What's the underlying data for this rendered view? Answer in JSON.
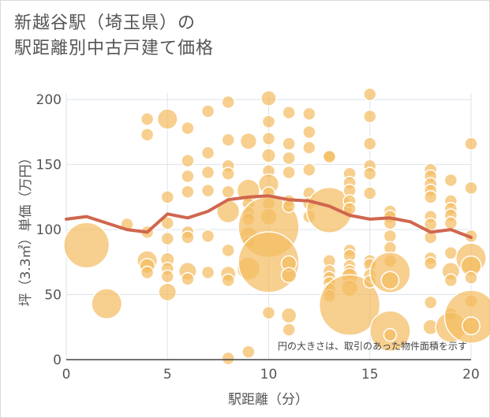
{
  "chart_data": {
    "type": "scatter",
    "title_line1": "新越谷駅（埼玉県）の",
    "title_line2": "駅距離別中古戸建て価格",
    "xlabel": "駅距離（分）",
    "ylabel": "坪（3.3㎡）単価（万円）",
    "note": "円の大きさは、取引のあった物件面積を示す",
    "xlim": [
      0,
      20
    ],
    "ylim": [
      0,
      205
    ],
    "x_ticks": [
      0,
      5,
      10,
      15,
      20
    ],
    "y_ticks": [
      0,
      50,
      100,
      150,
      200
    ],
    "colors": {
      "bubble": "#f4bc63",
      "line": "#d0664e",
      "grid": "#dde3ea",
      "axis": "#444444"
    },
    "points": [
      {
        "x": 1,
        "y": 88,
        "s": 3.6
      },
      {
        "x": 2,
        "y": 43,
        "s": 2.4
      },
      {
        "x": 3,
        "y": 104,
        "s": 1
      },
      {
        "x": 4,
        "y": 185,
        "s": 1
      },
      {
        "x": 4,
        "y": 173,
        "s": 1
      },
      {
        "x": 4,
        "y": 98,
        "s": 1
      },
      {
        "x": 4,
        "y": 76,
        "s": 1.6
      },
      {
        "x": 4,
        "y": 72,
        "s": 1.2
      },
      {
        "x": 4,
        "y": 67,
        "s": 1
      },
      {
        "x": 5,
        "y": 185,
        "s": 1.6
      },
      {
        "x": 5,
        "y": 125,
        "s": 1
      },
      {
        "x": 5,
        "y": 105,
        "s": 1
      },
      {
        "x": 5,
        "y": 93,
        "s": 1
      },
      {
        "x": 5,
        "y": 77,
        "s": 1.1
      },
      {
        "x": 5,
        "y": 70,
        "s": 1
      },
      {
        "x": 5,
        "y": 64,
        "s": 1
      },
      {
        "x": 5,
        "y": 52,
        "s": 1.4
      },
      {
        "x": 6,
        "y": 178,
        "s": 1
      },
      {
        "x": 6,
        "y": 153,
        "s": 1
      },
      {
        "x": 6,
        "y": 141,
        "s": 1
      },
      {
        "x": 6,
        "y": 129,
        "s": 1
      },
      {
        "x": 6,
        "y": 98,
        "s": 1
      },
      {
        "x": 6,
        "y": 94,
        "s": 1
      },
      {
        "x": 6,
        "y": 68,
        "s": 1.4
      },
      {
        "x": 6,
        "y": 62,
        "s": 1
      },
      {
        "x": 7,
        "y": 191,
        "s": 1
      },
      {
        "x": 7,
        "y": 159,
        "s": 1
      },
      {
        "x": 7,
        "y": 144,
        "s": 1
      },
      {
        "x": 7,
        "y": 130,
        "s": 1
      },
      {
        "x": 7,
        "y": 95,
        "s": 1
      },
      {
        "x": 7,
        "y": 67,
        "s": 1
      },
      {
        "x": 8,
        "y": 198,
        "s": 1
      },
      {
        "x": 8,
        "y": 169,
        "s": 1
      },
      {
        "x": 8,
        "y": 149,
        "s": 1
      },
      {
        "x": 8,
        "y": 143,
        "s": 1
      },
      {
        "x": 8,
        "y": 129,
        "s": 1
      },
      {
        "x": 8,
        "y": 114,
        "s": 1.8
      },
      {
        "x": 8,
        "y": 84,
        "s": 1
      },
      {
        "x": 8,
        "y": 66,
        "s": 1.2
      },
      {
        "x": 8,
        "y": 61,
        "s": 1
      },
      {
        "x": 8,
        "y": 1,
        "s": 1
      },
      {
        "x": 9,
        "y": 168,
        "s": 1.3
      },
      {
        "x": 9,
        "y": 130,
        "s": 1.8
      },
      {
        "x": 9,
        "y": 120,
        "s": 1
      },
      {
        "x": 9,
        "y": 113,
        "s": 1
      },
      {
        "x": 9,
        "y": 108,
        "s": 1
      },
      {
        "x": 9,
        "y": 96,
        "s": 1.3
      },
      {
        "x": 9,
        "y": 90,
        "s": 1
      },
      {
        "x": 9,
        "y": 70,
        "s": 1.8
      },
      {
        "x": 9,
        "y": 6,
        "s": 1
      },
      {
        "x": 10,
        "y": 201,
        "s": 1.2
      },
      {
        "x": 10,
        "y": 183,
        "s": 1
      },
      {
        "x": 10,
        "y": 170,
        "s": 1
      },
      {
        "x": 10,
        "y": 157,
        "s": 1.1
      },
      {
        "x": 10,
        "y": 145,
        "s": 1
      },
      {
        "x": 10,
        "y": 135,
        "s": 1.6
      },
      {
        "x": 10,
        "y": 128,
        "s": 1
      },
      {
        "x": 10,
        "y": 120,
        "s": 1
      },
      {
        "x": 10,
        "y": 110,
        "s": 1.3
      },
      {
        "x": 10,
        "y": 102,
        "s": 4.8
      },
      {
        "x": 10,
        "y": 75,
        "s": 4.8
      },
      {
        "x": 10,
        "y": 36,
        "s": 1
      },
      {
        "x": 11,
        "y": 190,
        "s": 1
      },
      {
        "x": 11,
        "y": 166,
        "s": 1
      },
      {
        "x": 11,
        "y": 155,
        "s": 1
      },
      {
        "x": 11,
        "y": 144,
        "s": 1
      },
      {
        "x": 11,
        "y": 122,
        "s": 1
      },
      {
        "x": 11,
        "y": 118,
        "s": 1
      },
      {
        "x": 11,
        "y": 74,
        "s": 1.2
      },
      {
        "x": 11,
        "y": 65,
        "s": 1.2
      },
      {
        "x": 11,
        "y": 34,
        "s": 1.2
      },
      {
        "x": 11,
        "y": 23,
        "s": 1
      },
      {
        "x": 12,
        "y": 189,
        "s": 1
      },
      {
        "x": 12,
        "y": 175,
        "s": 1
      },
      {
        "x": 12,
        "y": 163,
        "s": 1
      },
      {
        "x": 12,
        "y": 146,
        "s": 1
      },
      {
        "x": 12,
        "y": 128,
        "s": 1
      },
      {
        "x": 12,
        "y": 120,
        "s": 1
      },
      {
        "x": 12,
        "y": 110,
        "s": 1
      },
      {
        "x": 13,
        "y": 157,
        "s": 1
      },
      {
        "x": 13,
        "y": 156,
        "s": 1
      },
      {
        "x": 13,
        "y": 115,
        "s": 3.6
      },
      {
        "x": 13,
        "y": 76,
        "s": 1
      },
      {
        "x": 13,
        "y": 68,
        "s": 1
      },
      {
        "x": 13,
        "y": 63,
        "s": 1
      },
      {
        "x": 13,
        "y": 59,
        "s": 1
      },
      {
        "x": 13,
        "y": 54,
        "s": 1
      },
      {
        "x": 13,
        "y": 49,
        "s": 1
      },
      {
        "x": 14,
        "y": 143,
        "s": 1
      },
      {
        "x": 14,
        "y": 136,
        "s": 1
      },
      {
        "x": 14,
        "y": 130,
        "s": 1
      },
      {
        "x": 14,
        "y": 122,
        "s": 1
      },
      {
        "x": 14,
        "y": 116,
        "s": 1
      },
      {
        "x": 14,
        "y": 84,
        "s": 1
      },
      {
        "x": 14,
        "y": 80,
        "s": 1
      },
      {
        "x": 14,
        "y": 72,
        "s": 1
      },
      {
        "x": 14,
        "y": 68,
        "s": 1
      },
      {
        "x": 14,
        "y": 64,
        "s": 1.3
      },
      {
        "x": 14,
        "y": 55,
        "s": 1.3
      },
      {
        "x": 14,
        "y": 42,
        "s": 4.8
      },
      {
        "x": 15,
        "y": 204,
        "s": 1
      },
      {
        "x": 15,
        "y": 187,
        "s": 1
      },
      {
        "x": 15,
        "y": 166,
        "s": 1
      },
      {
        "x": 15,
        "y": 149,
        "s": 1
      },
      {
        "x": 15,
        "y": 143,
        "s": 1
      },
      {
        "x": 15,
        "y": 128,
        "s": 1
      },
      {
        "x": 15,
        "y": 76,
        "s": 1
      },
      {
        "x": 15,
        "y": 73,
        "s": 1
      },
      {
        "x": 15,
        "y": 65,
        "s": 1
      },
      {
        "x": 15,
        "y": 60,
        "s": 1
      },
      {
        "x": 16,
        "y": 114,
        "s": 1
      },
      {
        "x": 16,
        "y": 110,
        "s": 1
      },
      {
        "x": 16,
        "y": 105,
        "s": 1
      },
      {
        "x": 16,
        "y": 95,
        "s": 1
      },
      {
        "x": 16,
        "y": 86,
        "s": 1
      },
      {
        "x": 16,
        "y": 76,
        "s": 1
      },
      {
        "x": 16,
        "y": 67,
        "s": 3.2
      },
      {
        "x": 16,
        "y": 61,
        "s": 1.4
      },
      {
        "x": 16,
        "y": 22,
        "s": 3.2
      },
      {
        "x": 16,
        "y": 19,
        "s": 1
      },
      {
        "x": 18,
        "y": 146,
        "s": 1
      },
      {
        "x": 18,
        "y": 141,
        "s": 1
      },
      {
        "x": 18,
        "y": 135,
        "s": 1
      },
      {
        "x": 18,
        "y": 130,
        "s": 1
      },
      {
        "x": 18,
        "y": 125,
        "s": 1
      },
      {
        "x": 18,
        "y": 110,
        "s": 1
      },
      {
        "x": 18,
        "y": 104,
        "s": 1
      },
      {
        "x": 18,
        "y": 94,
        "s": 1
      },
      {
        "x": 18,
        "y": 78,
        "s": 1
      },
      {
        "x": 18,
        "y": 74,
        "s": 1
      },
      {
        "x": 18,
        "y": 44,
        "s": 1
      },
      {
        "x": 18,
        "y": 25,
        "s": 1.2
      },
      {
        "x": 19,
        "y": 138,
        "s": 1
      },
      {
        "x": 19,
        "y": 122,
        "s": 1
      },
      {
        "x": 19,
        "y": 116,
        "s": 1
      },
      {
        "x": 19,
        "y": 111,
        "s": 1
      },
      {
        "x": 19,
        "y": 105,
        "s": 1
      },
      {
        "x": 19,
        "y": 82,
        "s": 1
      },
      {
        "x": 19,
        "y": 68,
        "s": 1.4
      },
      {
        "x": 19,
        "y": 61,
        "s": 1
      },
      {
        "x": 19,
        "y": 35,
        "s": 1
      },
      {
        "x": 19,
        "y": 25,
        "s": 2.4
      },
      {
        "x": 20,
        "y": 166,
        "s": 1
      },
      {
        "x": 20,
        "y": 132,
        "s": 1
      },
      {
        "x": 20,
        "y": 95,
        "s": 1
      },
      {
        "x": 20,
        "y": 78,
        "s": 2.4
      },
      {
        "x": 20,
        "y": 72,
        "s": 1.6
      },
      {
        "x": 20,
        "y": 63,
        "s": 1
      },
      {
        "x": 20,
        "y": 45,
        "s": 1
      },
      {
        "x": 20,
        "y": 33,
        "s": 4.2
      },
      {
        "x": 20,
        "y": 26,
        "s": 1.4
      }
    ],
    "trend": [
      {
        "x": 0,
        "y": 108
      },
      {
        "x": 1,
        "y": 110
      },
      {
        "x": 2,
        "y": 105
      },
      {
        "x": 3,
        "y": 100
      },
      {
        "x": 4,
        "y": 98
      },
      {
        "x": 5,
        "y": 112
      },
      {
        "x": 6,
        "y": 109
      },
      {
        "x": 7,
        "y": 114
      },
      {
        "x": 8,
        "y": 123
      },
      {
        "x": 9,
        "y": 125
      },
      {
        "x": 10,
        "y": 126
      },
      {
        "x": 11,
        "y": 123
      },
      {
        "x": 12,
        "y": 122
      },
      {
        "x": 13,
        "y": 118
      },
      {
        "x": 14,
        "y": 111
      },
      {
        "x": 15,
        "y": 108
      },
      {
        "x": 16,
        "y": 109
      },
      {
        "x": 17,
        "y": 106
      },
      {
        "x": 18,
        "y": 98
      },
      {
        "x": 19,
        "y": 100
      },
      {
        "x": 20,
        "y": 94
      }
    ]
  }
}
